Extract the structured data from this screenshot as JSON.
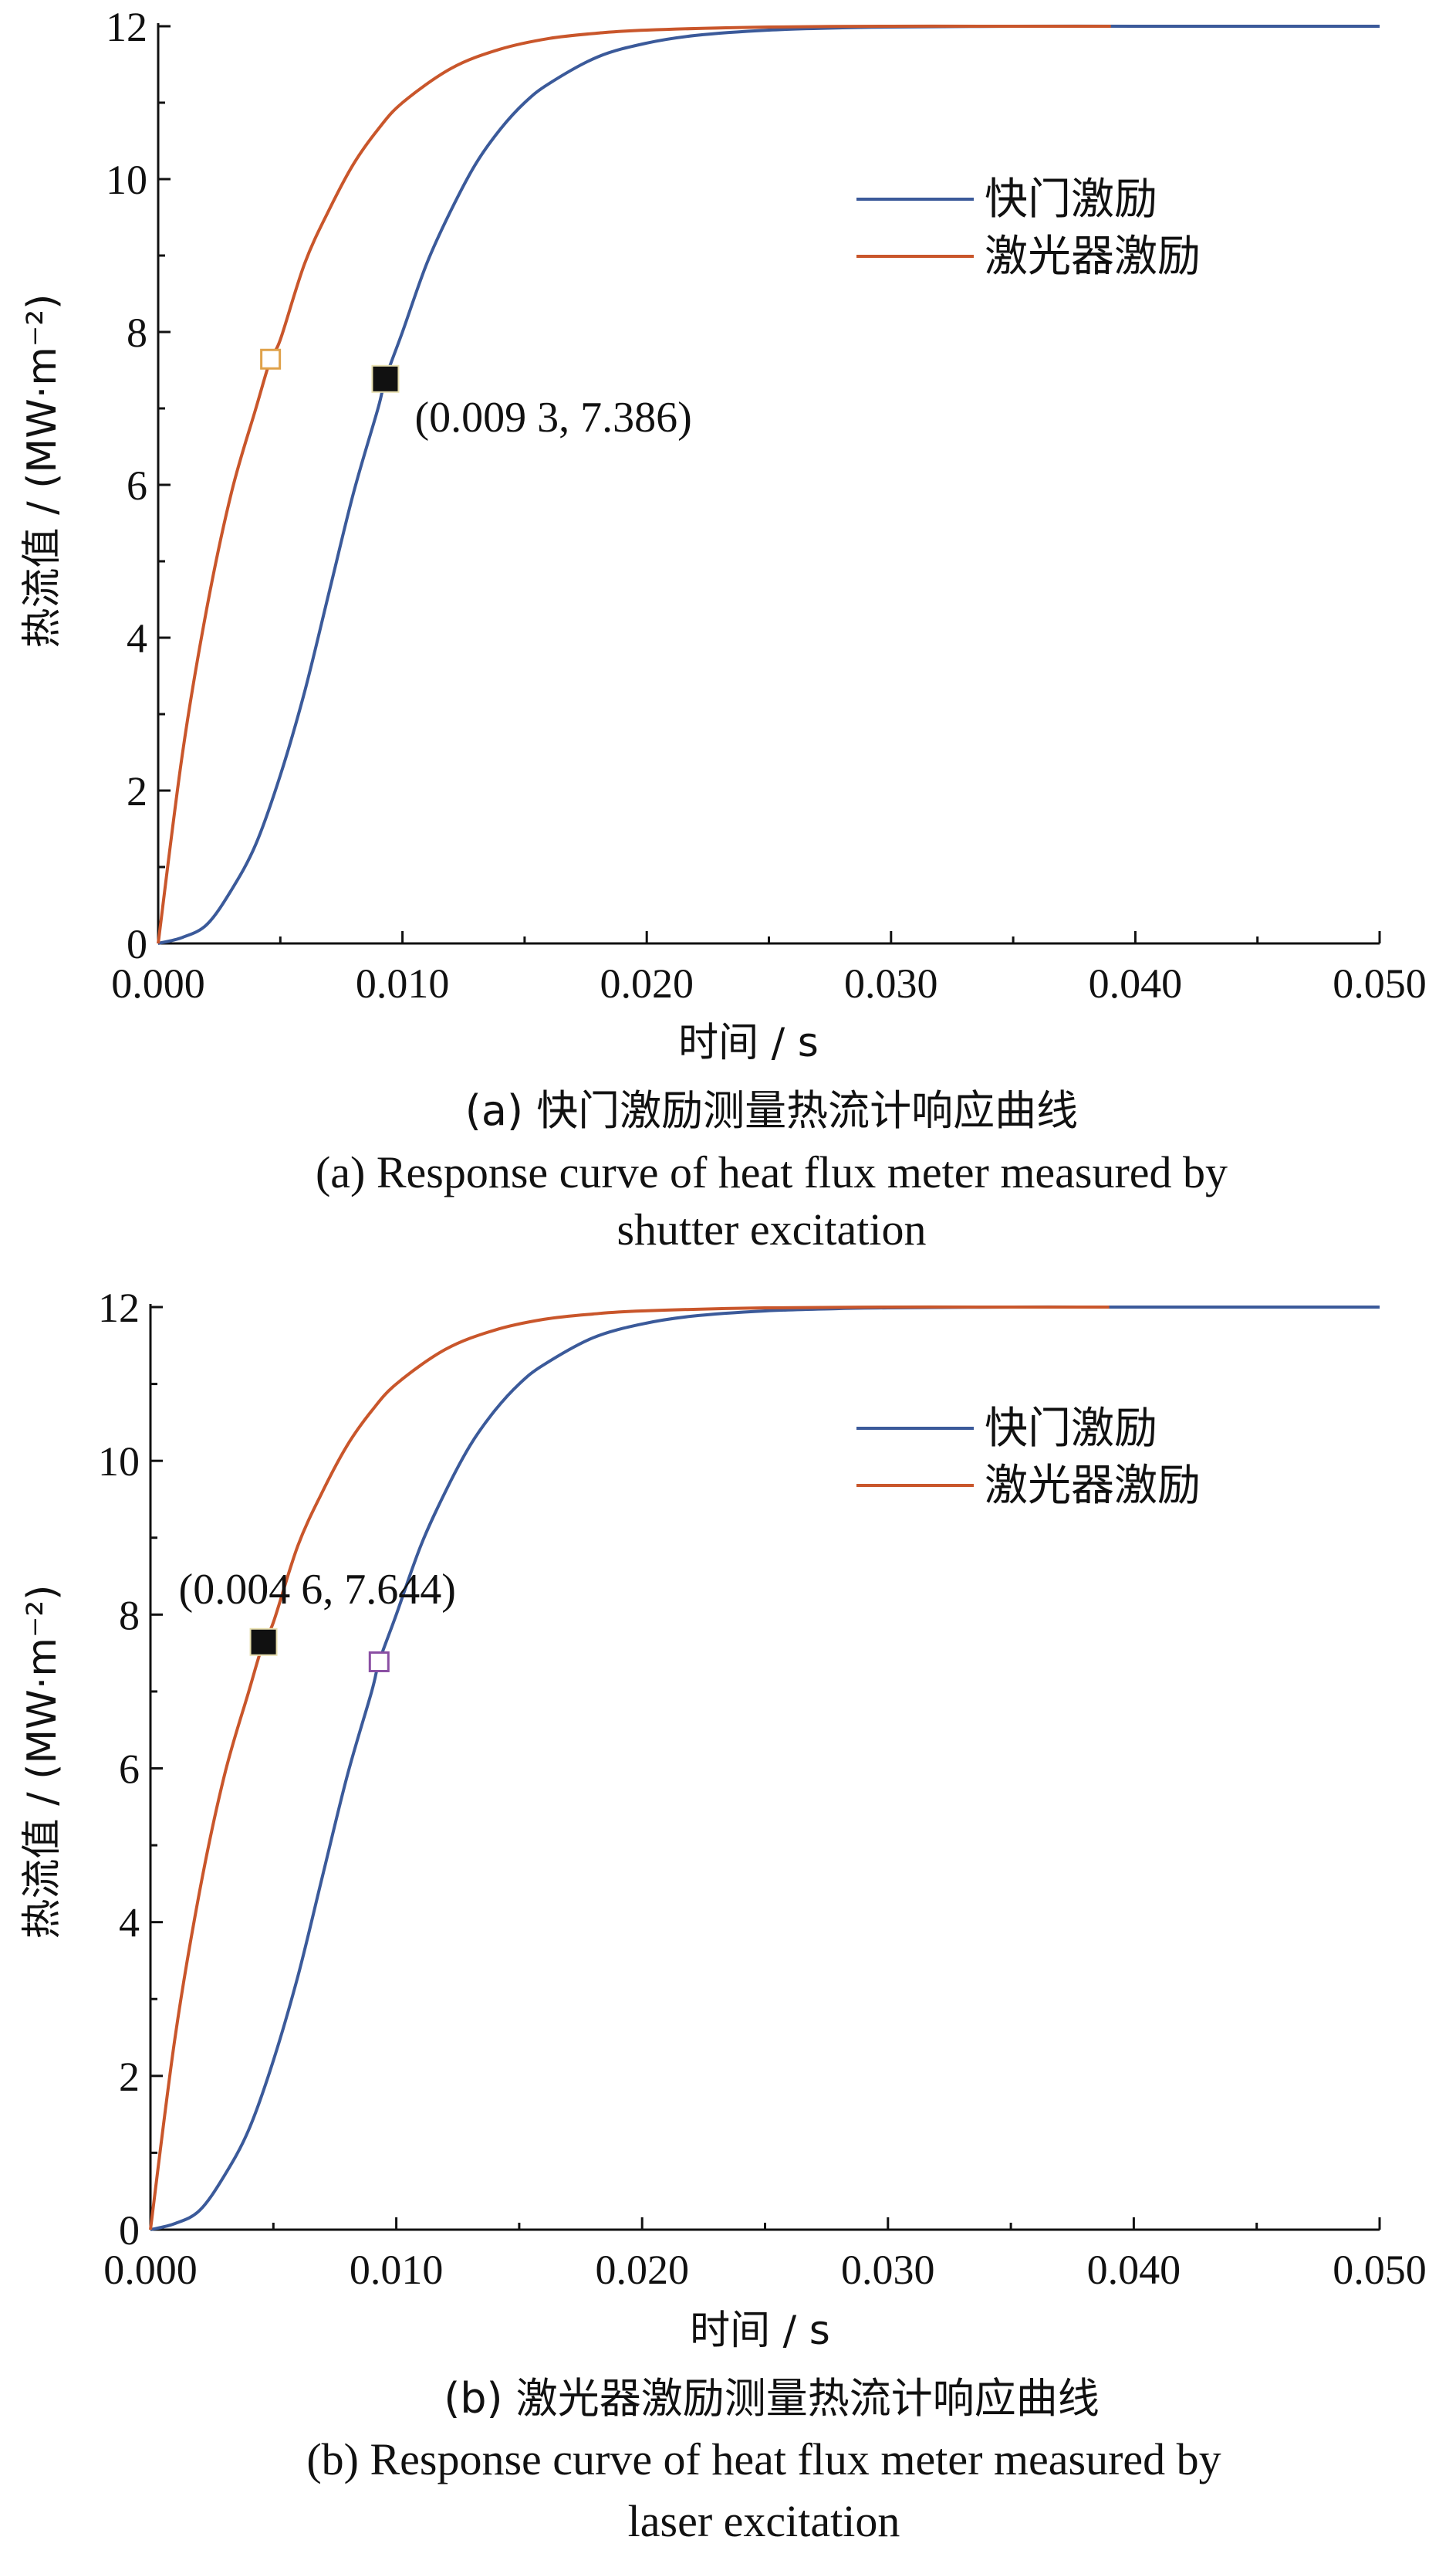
{
  "chart_data": [
    {
      "type": "line",
      "xlabel": "时间 / s",
      "ylabel": "热流值 / (MW·m⁻²)",
      "xlim": [
        0,
        0.05
      ],
      "ylim": [
        0,
        12
      ],
      "xticks": [
        0,
        0.01,
        0.02,
        0.03,
        0.04,
        0.05
      ],
      "xtick_labels": [
        "0.000",
        "0.010",
        "0.020",
        "0.030",
        "0.040",
        "0.050"
      ],
      "yticks": [
        0,
        2,
        4,
        6,
        8,
        10,
        12
      ],
      "ytick_labels": [
        "0",
        "2",
        "4",
        "6",
        "8",
        "10",
        "12"
      ],
      "legend_position": "upper-right",
      "series": [
        {
          "name": "快门激励",
          "color": "#3b5a9a",
          "x": [
            0,
            0.001,
            0.002,
            0.003,
            0.004,
            0.005,
            0.006,
            0.007,
            0.008,
            0.009,
            0.0093,
            0.01,
            0.011,
            0.012,
            0.013,
            0.014,
            0.015,
            0.016,
            0.018,
            0.02,
            0.022,
            0.025,
            0.028,
            0.03,
            0.035,
            0.04,
            0.045,
            0.05
          ],
          "y": [
            0,
            0.08,
            0.25,
            0.7,
            1.3,
            2.2,
            3.3,
            4.6,
            5.9,
            7.0,
            7.386,
            8.0,
            8.9,
            9.6,
            10.2,
            10.65,
            11.0,
            11.25,
            11.6,
            11.78,
            11.88,
            11.95,
            11.98,
            11.99,
            12.0,
            12.0,
            12.0,
            12.0
          ]
        },
        {
          "name": "激光器激励",
          "color": "#c9562b",
          "x": [
            0,
            0.001,
            0.002,
            0.003,
            0.004,
            0.0046,
            0.005,
            0.006,
            0.007,
            0.008,
            0.009,
            0.01,
            0.012,
            0.014,
            0.016,
            0.018,
            0.02,
            0.025,
            0.03,
            0.035,
            0.039
          ],
          "y": [
            0,
            2.5,
            4.4,
            5.9,
            7.0,
            7.644,
            7.9,
            8.9,
            9.6,
            10.2,
            10.65,
            11.0,
            11.45,
            11.7,
            11.84,
            11.91,
            11.95,
            11.99,
            12.0,
            12.0,
            12.0
          ]
        }
      ],
      "markers": [
        {
          "x": 0.0046,
          "y": 7.644,
          "style": "hollow",
          "color": "#e0a24a"
        },
        {
          "x": 0.0093,
          "y": 7.386,
          "style": "filled",
          "color": "#111111"
        }
      ],
      "annotation": {
        "text": "(0.009 3, 7.386)"
      },
      "caption_zh": "(a) 快门激励测量热流计响应曲线",
      "caption_en_line1": "(a) Response curve of heat flux meter measured by",
      "caption_en_line2": "shutter excitation"
    },
    {
      "type": "line",
      "xlabel": "时间 / s",
      "ylabel": "热流值 / (MW·m⁻²)",
      "xlim": [
        0,
        0.05
      ],
      "ylim": [
        0,
        12
      ],
      "xticks": [
        0,
        0.01,
        0.02,
        0.03,
        0.04,
        0.05
      ],
      "xtick_labels": [
        "0.000",
        "0.010",
        "0.020",
        "0.030",
        "0.040",
        "0.050"
      ],
      "yticks": [
        0,
        2,
        4,
        6,
        8,
        10,
        12
      ],
      "ytick_labels": [
        "0",
        "2",
        "4",
        "6",
        "8",
        "10",
        "12"
      ],
      "legend_position": "upper-right",
      "series": [
        {
          "name": "快门激励",
          "color": "#3b5a9a",
          "x": [
            0,
            0.001,
            0.002,
            0.003,
            0.004,
            0.005,
            0.006,
            0.007,
            0.008,
            0.009,
            0.0093,
            0.01,
            0.011,
            0.012,
            0.013,
            0.014,
            0.015,
            0.016,
            0.018,
            0.02,
            0.022,
            0.025,
            0.028,
            0.03,
            0.035,
            0.04,
            0.045,
            0.05
          ],
          "y": [
            0,
            0.08,
            0.25,
            0.7,
            1.3,
            2.2,
            3.3,
            4.6,
            5.9,
            7.0,
            7.386,
            8.0,
            8.9,
            9.6,
            10.2,
            10.65,
            11.0,
            11.25,
            11.6,
            11.78,
            11.88,
            11.95,
            11.98,
            11.99,
            12.0,
            12.0,
            12.0,
            12.0
          ]
        },
        {
          "name": "激光器激励",
          "color": "#c9562b",
          "x": [
            0,
            0.001,
            0.002,
            0.003,
            0.004,
            0.0046,
            0.005,
            0.006,
            0.007,
            0.008,
            0.009,
            0.01,
            0.012,
            0.014,
            0.016,
            0.018,
            0.02,
            0.025,
            0.03,
            0.035,
            0.039
          ],
          "y": [
            0,
            2.5,
            4.4,
            5.9,
            7.0,
            7.644,
            7.9,
            8.9,
            9.6,
            10.2,
            10.65,
            11.0,
            11.45,
            11.7,
            11.84,
            11.91,
            11.95,
            11.99,
            12.0,
            12.0,
            12.0
          ]
        }
      ],
      "markers": [
        {
          "x": 0.0046,
          "y": 7.644,
          "style": "filled",
          "color": "#111111"
        },
        {
          "x": 0.0093,
          "y": 7.386,
          "style": "hollow",
          "color": "#8a4fa3"
        }
      ],
      "annotation": {
        "text": "(0.004 6, 7.644)"
      },
      "caption_zh": "(b) 激光器激励测量热流计响应曲线",
      "caption_en_line1": "(b) Response curve of heat flux meter measured by",
      "caption_en_line2": "laser excitation"
    }
  ]
}
